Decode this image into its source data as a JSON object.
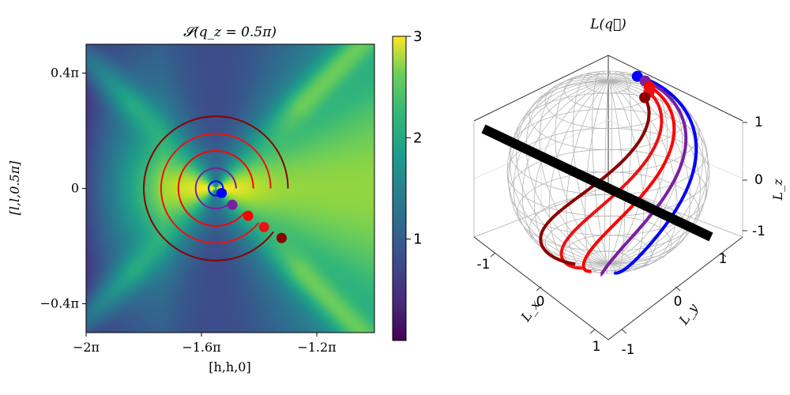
{
  "chart_data": [
    {
      "type": "heatmap",
      "title": "𝓢(q_z = 0.5π)",
      "xlabel": "[h,h,0]",
      "ylabel": "[l,l,0.5π]",
      "x_tick_labels": [
        "−2π",
        "−1.6π",
        "−1.2π"
      ],
      "x_tick_values": [
        -2.0,
        -1.6,
        -1.2
      ],
      "y_tick_labels": [
        "0.4π",
        "0",
        "−0.4π"
      ],
      "y_tick_values": [
        0.4,
        0.0,
        -0.4
      ],
      "xlim": [
        -2.0,
        -1.0
      ],
      "ylim": [
        -0.5,
        0.5
      ],
      "colorbar": {
        "range": [
          0,
          3
        ],
        "ticks": [
          "1",
          "2",
          "3"
        ],
        "tick_values": [
          1,
          2,
          3
        ],
        "colormap": "viridis"
      },
      "spiral_center": [
        -1.55,
        0.0
      ],
      "spirals": [
        {
          "radius": 0.025,
          "color": "#0000ff",
          "end_point": [
            -1.53,
            -0.016
          ]
        },
        {
          "radius": 0.07,
          "color": "#7a1fa0",
          "end_point": [
            -1.493,
            -0.057
          ]
        },
        {
          "radius": 0.13,
          "color": "#ff0000",
          "end_point": [
            -1.438,
            -0.095
          ]
        },
        {
          "radius": 0.19,
          "color": "#ee1111",
          "end_point": [
            -1.383,
            -0.134
          ]
        },
        {
          "radius": 0.25,
          "color": "#8b0000",
          "end_point": [
            -1.322,
            -0.172
          ]
        }
      ]
    },
    {
      "type": "scatter",
      "title": "L(q⃗)",
      "xlabel": "L_x",
      "ylabel": "L_y",
      "zlabel": "L_z",
      "x_tick_labels": [
        "-1",
        "0",
        "1"
      ],
      "y_tick_labels": [
        "1",
        "0",
        "-1"
      ],
      "z_tick_labels": [
        "1",
        "0",
        "-1"
      ],
      "xlim": [
        -1,
        1
      ],
      "ylim": [
        -1,
        1
      ],
      "zlim": [
        -1,
        1
      ],
      "sphere": "unit sphere wireframe",
      "axis_line": "black line through sphere",
      "curve_colors": [
        "#0000ff",
        "#7a1fa0",
        "#ff0000",
        "#ee1111",
        "#8b0000"
      ]
    }
  ]
}
